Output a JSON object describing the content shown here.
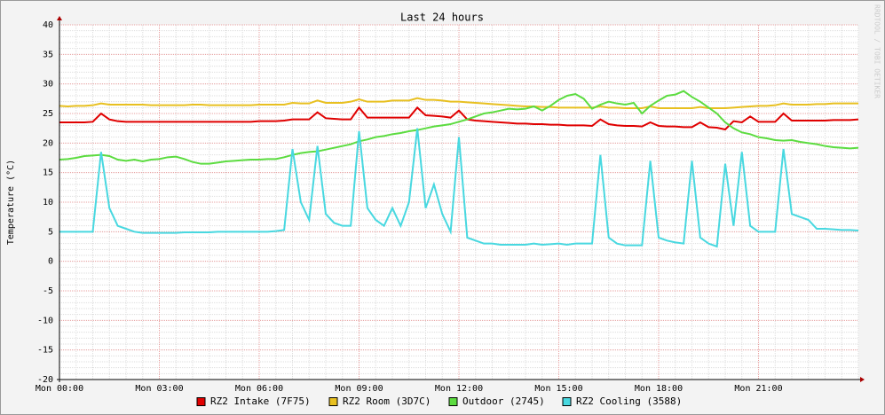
{
  "chart_data": {
    "type": "line",
    "title": "Last 24 hours",
    "y_label": "Temperature (°C)",
    "watermark": "RRDTOOL / TOBI OETIKER",
    "xlim": [
      0,
      24
    ],
    "xticks": [
      {
        "value": 0,
        "label": "Mon 00:00"
      },
      {
        "value": 3,
        "label": "Mon 03:00"
      },
      {
        "value": 6,
        "label": "Mon 06:00"
      },
      {
        "value": 9,
        "label": "Mon 09:00"
      },
      {
        "value": 12,
        "label": "Mon 12:00"
      },
      {
        "value": 15,
        "label": "Mon 15:00"
      },
      {
        "value": 18,
        "label": "Mon 18:00"
      },
      {
        "value": 21,
        "label": "Mon 21:00"
      }
    ],
    "ylim": [
      -20,
      40
    ],
    "yticks": [
      -20,
      -15,
      -10,
      -5,
      0,
      5,
      10,
      15,
      20,
      25,
      30,
      35,
      40
    ],
    "grid": true,
    "legend": "bottom",
    "x": [
      0,
      0.25,
      0.5,
      0.75,
      1,
      1.25,
      1.5,
      1.75,
      2,
      2.25,
      2.5,
      2.75,
      3,
      3.25,
      3.5,
      3.75,
      4,
      4.25,
      4.5,
      4.75,
      5,
      5.25,
      5.5,
      5.75,
      6,
      6.25,
      6.5,
      6.75,
      7,
      7.25,
      7.5,
      7.75,
      8,
      8.25,
      8.5,
      8.75,
      9,
      9.25,
      9.5,
      9.75,
      10,
      10.25,
      10.5,
      10.75,
      11,
      11.25,
      11.5,
      11.75,
      12,
      12.25,
      12.5,
      12.75,
      13,
      13.25,
      13.5,
      13.75,
      14,
      14.25,
      14.5,
      14.75,
      15,
      15.25,
      15.5,
      15.75,
      16,
      16.25,
      16.5,
      16.75,
      17,
      17.25,
      17.5,
      17.75,
      18,
      18.25,
      18.5,
      18.75,
      19,
      19.25,
      19.5,
      19.75,
      20,
      20.25,
      20.5,
      20.75,
      21,
      21.25,
      21.5,
      21.75,
      22,
      22.25,
      22.5,
      22.75,
      23,
      23.25,
      23.5,
      23.75,
      24
    ],
    "series": [
      {
        "name": "RZ2 Intake (7F75)",
        "color": "#e00000",
        "values": [
          23.5,
          23.5,
          23.5,
          23.5,
          23.6,
          25,
          24,
          23.7,
          23.6,
          23.6,
          23.6,
          23.6,
          23.6,
          23.6,
          23.6,
          23.6,
          23.6,
          23.6,
          23.6,
          23.6,
          23.6,
          23.6,
          23.6,
          23.6,
          23.7,
          23.7,
          23.7,
          23.8,
          24,
          24,
          24,
          25.2,
          24.2,
          24.1,
          24,
          24,
          26,
          24.3,
          24.3,
          24.3,
          24.3,
          24.3,
          24.3,
          26,
          24.7,
          24.6,
          24.5,
          24.3,
          25.5,
          24,
          23.8,
          23.7,
          23.6,
          23.5,
          23.4,
          23.3,
          23.3,
          23.2,
          23.2,
          23.1,
          23.1,
          23,
          23,
          23,
          22.9,
          24,
          23.2,
          23,
          22.9,
          22.9,
          22.8,
          23.5,
          22.9,
          22.8,
          22.8,
          22.7,
          22.7,
          23.5,
          22.7,
          22.6,
          22.3,
          23.7,
          23.5,
          24.5,
          23.6,
          23.6,
          23.6,
          25,
          23.8,
          23.8,
          23.8,
          23.8,
          23.8,
          23.9,
          23.9,
          23.9,
          24
        ]
      },
      {
        "name": "RZ2 Room (3D7C)",
        "color": "#e8c020",
        "values": [
          26.3,
          26.2,
          26.3,
          26.3,
          26.4,
          26.7,
          26.5,
          26.5,
          26.5,
          26.5,
          26.5,
          26.4,
          26.4,
          26.4,
          26.4,
          26.4,
          26.5,
          26.5,
          26.4,
          26.4,
          26.4,
          26.4,
          26.4,
          26.4,
          26.5,
          26.5,
          26.5,
          26.5,
          26.8,
          26.7,
          26.7,
          27.2,
          26.8,
          26.8,
          26.8,
          27,
          27.4,
          27,
          27,
          27,
          27.2,
          27.2,
          27.2,
          27.6,
          27.3,
          27.3,
          27.2,
          27,
          27,
          26.9,
          26.8,
          26.7,
          26.6,
          26.5,
          26.4,
          26.3,
          26.2,
          26.2,
          26.1,
          26.1,
          26,
          26,
          26,
          26,
          26,
          26.2,
          26,
          26,
          25.9,
          25.9,
          25.9,
          26.2,
          25.9,
          25.9,
          25.9,
          25.9,
          25.9,
          26.1,
          25.9,
          25.9,
          25.9,
          26,
          26.1,
          26.2,
          26.3,
          26.3,
          26.4,
          26.7,
          26.5,
          26.5,
          26.5,
          26.6,
          26.6,
          26.7,
          26.7,
          26.7,
          26.7
        ]
      },
      {
        "name": "Outdoor (2745)",
        "color": "#5cdc40",
        "values": [
          17.2,
          17.3,
          17.5,
          17.8,
          17.9,
          18,
          17.8,
          17.2,
          17,
          17.2,
          16.9,
          17.2,
          17.3,
          17.6,
          17.7,
          17.3,
          16.8,
          16.5,
          16.5,
          16.7,
          16.9,
          17,
          17.1,
          17.2,
          17.2,
          17.3,
          17.3,
          17.6,
          18,
          18.3,
          18.5,
          18.6,
          18.9,
          19.2,
          19.5,
          19.8,
          20.3,
          20.6,
          21,
          21.2,
          21.5,
          21.7,
          22,
          22.2,
          22.5,
          22.8,
          23,
          23.2,
          23.6,
          24,
          24.5,
          25,
          25.2,
          25.5,
          25.8,
          25.7,
          25.8,
          26.2,
          25.5,
          26.3,
          27.3,
          28,
          28.3,
          27.5,
          25.8,
          26.5,
          27,
          26.7,
          26.5,
          26.8,
          25,
          26.3,
          27.2,
          28,
          28.2,
          28.8,
          27.8,
          27,
          26,
          25,
          23.5,
          22.5,
          21.8,
          21.5,
          21,
          20.8,
          20.5,
          20.4,
          20.5,
          20.2,
          20,
          19.8,
          19.5,
          19.3,
          19.2,
          19.1,
          19.2
        ]
      },
      {
        "name": "RZ2 Cooling (3588)",
        "color": "#48d8e0",
        "values": [
          5,
          5,
          5,
          5,
          5,
          18.5,
          9,
          6,
          5.5,
          5,
          4.8,
          4.8,
          4.8,
          4.8,
          4.8,
          4.9,
          4.9,
          4.9,
          4.9,
          5,
          5,
          5,
          5,
          5,
          5,
          5,
          5.1,
          5.3,
          19,
          10,
          7,
          19.5,
          8,
          6.5,
          6,
          6,
          22,
          9,
          7,
          6,
          9,
          6,
          10,
          22.5,
          9,
          13,
          8,
          5,
          21,
          4,
          3.5,
          3,
          3,
          2.8,
          2.8,
          2.8,
          2.8,
          3,
          2.8,
          2.9,
          3,
          2.8,
          3,
          3,
          3,
          18,
          4,
          3,
          2.7,
          2.7,
          2.7,
          17,
          4,
          3.5,
          3.2,
          3,
          17,
          4,
          3,
          2.5,
          16.5,
          6,
          18.5,
          6,
          5,
          5,
          5,
          19,
          8,
          7.5,
          7,
          5.5,
          5.5,
          5.4,
          5.3,
          5.3,
          5.2
        ]
      }
    ]
  }
}
